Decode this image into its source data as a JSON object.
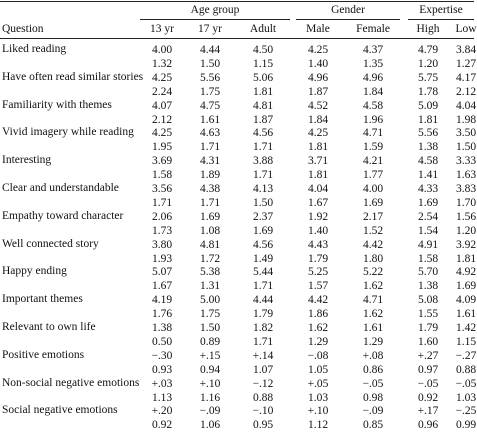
{
  "header": {
    "groups": [
      "Age group",
      "Gender",
      "Expertise"
    ],
    "question_label": "Question",
    "columns": [
      "13 yr",
      "17 yr",
      "Adult",
      "Male",
      "Female",
      "High",
      "Low"
    ]
  },
  "rows": [
    {
      "label": "Liked reading",
      "means": [
        "4.00",
        "4.44",
        "4.50",
        "4.25",
        "4.37",
        "4.79",
        "3.84"
      ],
      "sds": [
        "1.32",
        "1.50",
        "1.15",
        "1.40",
        "1.35",
        "1.20",
        "1.27"
      ]
    },
    {
      "label": "Have often read similar stories",
      "means": [
        "4.25",
        "5.56",
        "5.06",
        "4.96",
        "4.96",
        "5.75",
        "4.17"
      ],
      "sds": [
        "2.24",
        "1.75",
        "1.81",
        "1.87",
        "1.84",
        "1.78",
        "2.12"
      ]
    },
    {
      "label": "Familiarity with themes",
      "means": [
        "4.07",
        "4.75",
        "4.81",
        "4.52",
        "4.58",
        "5.09",
        "4.04"
      ],
      "sds": [
        "2.12",
        "1.61",
        "1.87",
        "1.84",
        "1.96",
        "1.81",
        "1.98"
      ]
    },
    {
      "label": "Vivid imagery while reading",
      "means": [
        "4.25",
        "4.63",
        "4.56",
        "4.25",
        "4.71",
        "5.56",
        "3.50"
      ],
      "sds": [
        "1.95",
        "1.71",
        "1.71",
        "1.81",
        "1.59",
        "1.38",
        "1.50"
      ]
    },
    {
      "label": "Interesting",
      "means": [
        "3.69",
        "4.31",
        "3.88",
        "3.71",
        "4.21",
        "4.58",
        "3.33"
      ],
      "sds": [
        "1.58",
        "1.89",
        "1.71",
        "1.81",
        "1.77",
        "1.41",
        "1.63"
      ]
    },
    {
      "label": "Clear and understandable",
      "means": [
        "3.56",
        "4.38",
        "4.13",
        "4.04",
        "4.00",
        "4.33",
        "3.83"
      ],
      "sds": [
        "1.71",
        "1.71",
        "1.50",
        "1.67",
        "1.69",
        "1.69",
        "1.70"
      ]
    },
    {
      "label": "Empathy toward character",
      "means": [
        "2.06",
        "1.69",
        "2.37",
        "1.92",
        "2.17",
        "2.54",
        "1.56"
      ],
      "sds": [
        "1.73",
        "1.08",
        "1.69",
        "1.40",
        "1.52",
        "1.54",
        "1.20"
      ]
    },
    {
      "label": "Well connected story",
      "means": [
        "3.80",
        "4.81",
        "4.56",
        "4.43",
        "4.42",
        "4.91",
        "3.92"
      ],
      "sds": [
        "1.93",
        "1.72",
        "1.49",
        "1.79",
        "1.80",
        "1.58",
        "1.81"
      ]
    },
    {
      "label": "Happy ending",
      "means": [
        "5.07",
        "5.38",
        "5.44",
        "5.25",
        "5.22",
        "5.70",
        "4.92"
      ],
      "sds": [
        "1.67",
        "1.31",
        "1.71",
        "1.57",
        "1.62",
        "1.38",
        "1.69"
      ]
    },
    {
      "label": "Important themes",
      "means": [
        "4.19",
        "5.00",
        "4.44",
        "4.42",
        "4.71",
        "5.08",
        "4.09"
      ],
      "sds": [
        "1.76",
        "1.75",
        "1.79",
        "1.86",
        "1.62",
        "1.55",
        "1.61"
      ]
    },
    {
      "label": "Relevant to own life",
      "means": [
        "1.38",
        "1.50",
        "1.82",
        "1.62",
        "1.61",
        "1.79",
        "1.42"
      ],
      "sds": [
        "0.50",
        "0.89",
        "1.71",
        "1.29",
        "1.29",
        "1.60",
        "1.15"
      ]
    },
    {
      "label": "Positive emotions",
      "means": [
        "−.30",
        "+.15",
        "+.14",
        "−.08",
        "+.08",
        "+.27",
        "−.27"
      ],
      "sds": [
        "0.93",
        "0.94",
        "1.07",
        "1.05",
        "0.86",
        "0.97",
        "0.88"
      ]
    },
    {
      "label": "Non-social negative emotions",
      "means": [
        "+.03",
        "+.10",
        "−.12",
        "+.05",
        "−.05",
        "−.05",
        "−.05"
      ],
      "sds": [
        "1.13",
        "1.16",
        "0.88",
        "1.03",
        "0.98",
        "0.92",
        "1.03"
      ]
    },
    {
      "label": "Social negative emotions",
      "means": [
        "+.20",
        "−.09",
        "−.10",
        "+.10",
        "−.09",
        "+.17",
        "−.25"
      ],
      "sds": [
        "0.92",
        "1.06",
        "0.95",
        "1.12",
        "0.85",
        "0.96",
        "0.99"
      ]
    }
  ]
}
